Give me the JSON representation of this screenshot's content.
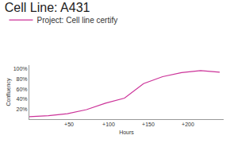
{
  "chart_data": {
    "type": "line",
    "title": "Cell Line: A431",
    "x_label": "Hours",
    "y_label": "Confluency",
    "x": [
      0,
      24,
      48,
      72,
      96,
      120,
      144,
      168,
      192,
      216,
      240
    ],
    "series": [
      {
        "name": "Project: Cell line certify",
        "color": "#cc3399",
        "values": [
          5,
          7,
          11,
          19,
          32,
          42,
          71,
          85,
          93,
          97,
          94
        ]
      }
    ],
    "xlim": [
      0,
      245
    ],
    "xticks": [
      {
        "value": 50,
        "label": "+50"
      },
      {
        "value": 100,
        "label": "+100"
      },
      {
        "value": 150,
        "label": "+150"
      },
      {
        "value": 200,
        "label": "+200"
      }
    ],
    "ylim": [
      0,
      108
    ],
    "yticks": [
      {
        "value": 20,
        "label": "20%"
      },
      {
        "value": 40,
        "label": "40%"
      },
      {
        "value": 60,
        "label": "60%"
      },
      {
        "value": 80,
        "label": "80%"
      },
      {
        "value": 100,
        "label": "100%"
      }
    ],
    "grid": false,
    "legend": "top-left",
    "line_style": "solid"
  }
}
